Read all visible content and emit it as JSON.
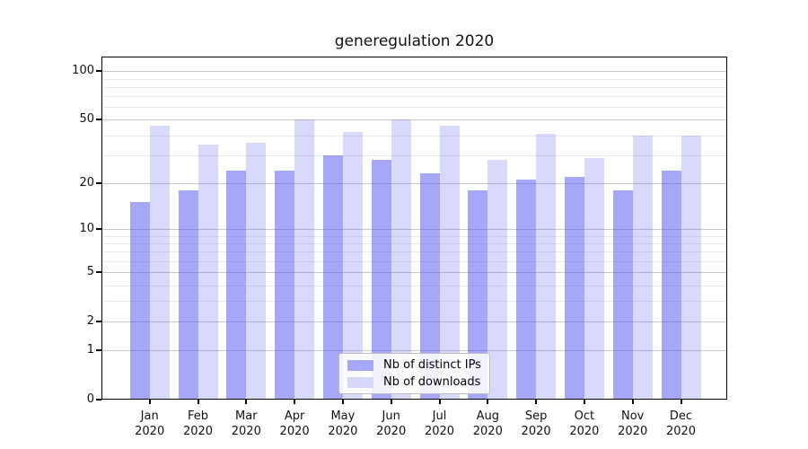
{
  "title": "generegulation 2020",
  "legend": {
    "items": [
      {
        "label": "Nb of distinct IPs"
      },
      {
        "label": "Nb of downloads"
      }
    ]
  },
  "chart_data": {
    "type": "bar",
    "title": "generegulation 2020",
    "xlabel": "",
    "ylabel": "",
    "scale": "log1p",
    "ylim": [
      0,
      123
    ],
    "grid": "on",
    "legend_position": "bottom-center",
    "year": "2020",
    "categories": [
      "Jan",
      "Feb",
      "Mar",
      "Apr",
      "May",
      "Jun",
      "Jul",
      "Aug",
      "Sep",
      "Oct",
      "Nov",
      "Dec"
    ],
    "yticks": [
      0,
      1,
      2,
      5,
      10,
      20,
      50,
      100
    ],
    "minor_yticks": [
      3,
      4,
      6,
      7,
      8,
      9,
      30,
      40,
      60,
      70,
      80,
      90
    ],
    "series": [
      {
        "name": "Nb of distinct IPs",
        "color": "rgba(80,80,240,0.5)",
        "legend_color": "#a7a7f7",
        "values": [
          15,
          18,
          24,
          24,
          30,
          28,
          23,
          18,
          21,
          22,
          18,
          24
        ]
      },
      {
        "name": "Nb of downloads",
        "color": "rgba(80,80,240,0.22)",
        "legend_color": "#d8d8fa",
        "values": [
          46,
          35,
          36,
          50,
          42,
          50,
          46,
          28,
          41,
          29,
          40,
          40
        ]
      }
    ]
  }
}
